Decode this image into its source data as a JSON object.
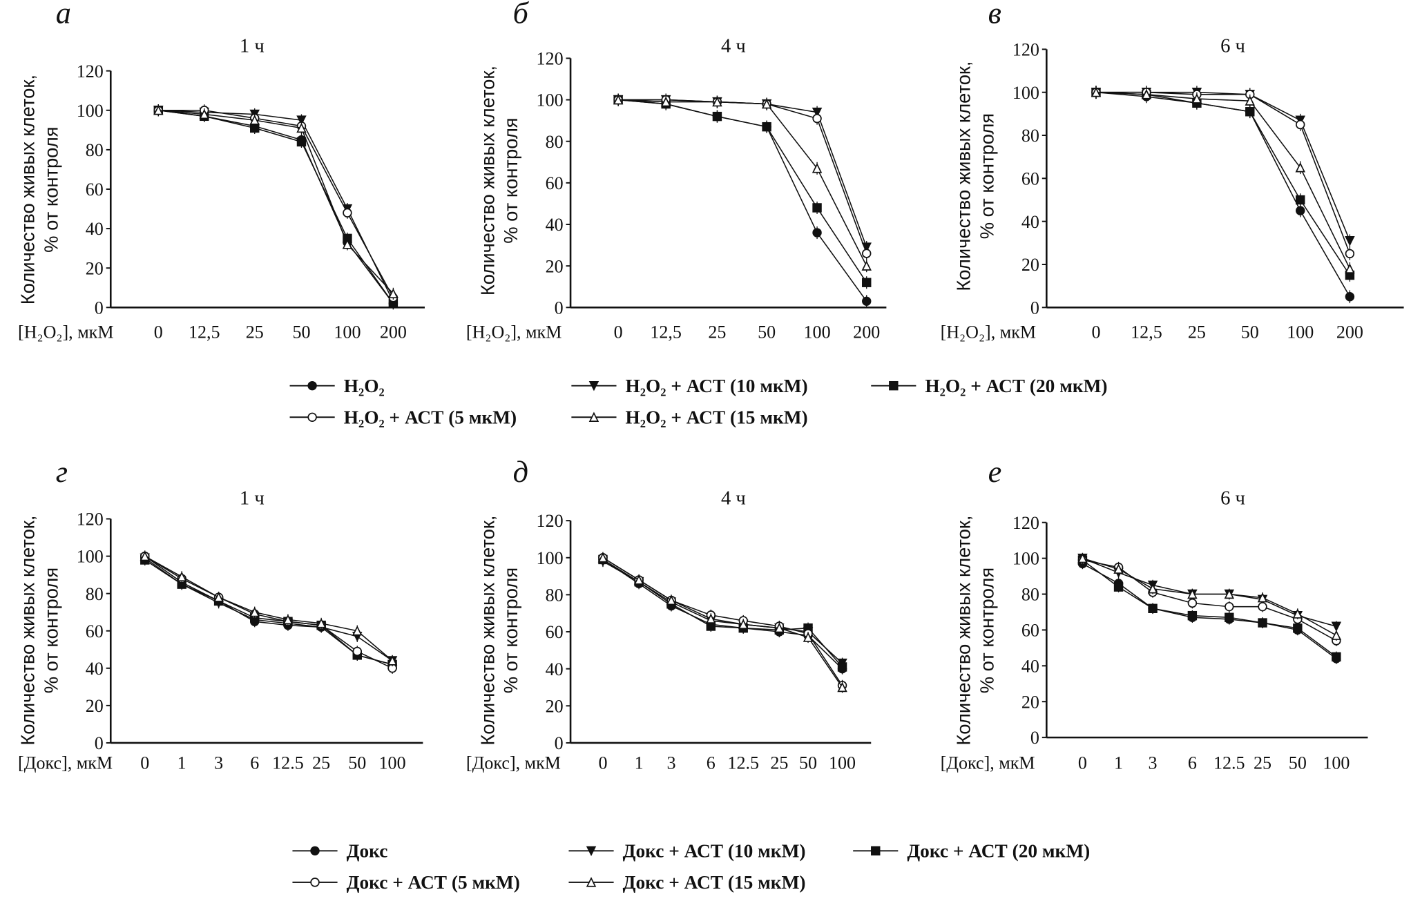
{
  "colors": {
    "line": "#111111",
    "background": "#ffffff"
  },
  "legend_h2o2": [
    "H₂O₂",
    "H₂O₂ + АСТ (10 мкМ)",
    "H₂O₂ + АСТ (20 мкМ)",
    "H₂O₂ + АСТ (5 мкМ)",
    "H₂O₂ + АСТ (15 мкМ)"
  ],
  "legend_doks": [
    "Докс",
    "Докс + АСТ (10 мкМ)",
    "Докс + АСТ (20 мкМ)",
    "Докс + АСТ (5 мкМ)",
    "Докс + АСТ (15 мкМ)"
  ],
  "markers": [
    "filled-circle",
    "filled-triangle-down",
    "filled-square",
    "open-circle",
    "open-triangle-up"
  ],
  "chart_data": [
    {
      "type": "line",
      "letter": "а",
      "title": "1 ч",
      "xlabel": "[H₂O₂], мкМ",
      "ylabel": [
        "Количество живых клеток,",
        "% от контроля"
      ],
      "categories": [
        "0",
        "12,5",
        "25",
        "50",
        "100",
        "200"
      ],
      "ylim": [
        0,
        120
      ],
      "yticks": [
        "0",
        "20",
        "40",
        "60",
        "80",
        "100",
        "120"
      ],
      "grid": false,
      "series": [
        {
          "name": "H₂O₂",
          "values": [
            100,
            97,
            92,
            85,
            33,
            2
          ]
        },
        {
          "name": "H₂O₂ + АСТ (10 мкМ)",
          "values": [
            100,
            99,
            98,
            95,
            50,
            3
          ]
        },
        {
          "name": "H₂O₂ + АСТ (20 мкМ)",
          "values": [
            100,
            97,
            91,
            84,
            35,
            2
          ]
        },
        {
          "name": "H₂O₂ + АСТ (5 мкМ)",
          "values": [
            100,
            100,
            96,
            92,
            48,
            5
          ]
        },
        {
          "name": "H₂O₂ + АСТ (15 мкМ)",
          "values": [
            100,
            98,
            95,
            91,
            32,
            7
          ]
        }
      ]
    },
    {
      "type": "line",
      "letter": "б",
      "title": "4 ч",
      "xlabel": "[H₂O₂], мкМ",
      "ylabel": [
        "Количество живых клеток,",
        "% от контроля"
      ],
      "categories": [
        "0",
        "12,5",
        "25",
        "50",
        "100",
        "200"
      ],
      "ylim": [
        0,
        120
      ],
      "yticks": [
        "0",
        "20",
        "40",
        "60",
        "80",
        "100",
        "120"
      ],
      "grid": false,
      "series": [
        {
          "name": "H₂O₂",
          "values": [
            100,
            98,
            92,
            87,
            36,
            3
          ]
        },
        {
          "name": "H₂O₂ + АСТ (10 мкМ)",
          "values": [
            100,
            100,
            99,
            98,
            94,
            29
          ]
        },
        {
          "name": "H₂O₂ + АСТ (20 мкМ)",
          "values": [
            100,
            98,
            92,
            87,
            48,
            12
          ]
        },
        {
          "name": "H₂O₂ + АСТ (5 мкМ)",
          "values": [
            100,
            100,
            99,
            98,
            91,
            26
          ]
        },
        {
          "name": "H₂O₂ + АСТ (15 мкМ)",
          "values": [
            100,
            99,
            99,
            98,
            67,
            20
          ]
        }
      ]
    },
    {
      "type": "line",
      "letter": "в",
      "title": "6 ч",
      "xlabel": "[H₂O₂], мкМ",
      "ylabel": [
        "Количество живых клеток,",
        "% от контроля"
      ],
      "categories": [
        "0",
        "12,5",
        "25",
        "50",
        "100",
        "200"
      ],
      "ylim": [
        0,
        120
      ],
      "yticks": [
        "0",
        "20",
        "40",
        "60",
        "80",
        "100",
        "120"
      ],
      "grid": false,
      "series": [
        {
          "name": "H₂O₂",
          "values": [
            100,
            98,
            95,
            91,
            45,
            5
          ]
        },
        {
          "name": "H₂O₂ + АСТ (10 мкМ)",
          "values": [
            100,
            100,
            100,
            99,
            87,
            31
          ]
        },
        {
          "name": "H₂O₂ + АСТ (20 мкМ)",
          "values": [
            100,
            99,
            95,
            91,
            50,
            15
          ]
        },
        {
          "name": "H₂O₂ + АСТ (5 мкМ)",
          "values": [
            100,
            100,
            99,
            99,
            85,
            25
          ]
        },
        {
          "name": "H₂O₂ + АСТ (15 мкМ)",
          "values": [
            100,
            99,
            97,
            96,
            65,
            18
          ]
        }
      ]
    },
    {
      "type": "line",
      "letter": "г",
      "title": "1 ч",
      "xlabel": "[Докс], мкМ",
      "ylabel": [
        "Количество живых клеток,",
        "% от контроля"
      ],
      "categories": [
        "0",
        "1",
        "3",
        "6",
        "12.5",
        "25",
        "50",
        "100"
      ],
      "ylim": [
        0,
        120
      ],
      "yticks": [
        "0",
        "20",
        "40",
        "60",
        "80",
        "100",
        "120"
      ],
      "grid": false,
      "series": [
        {
          "name": "Докс",
          "values": [
            100,
            86,
            76,
            65,
            63,
            62,
            47,
            42
          ]
        },
        {
          "name": "Докс + АСТ (10 мкМ)",
          "values": [
            99,
            85,
            75,
            66,
            64,
            62,
            57,
            44
          ]
        },
        {
          "name": "Докс + АСТ (20 мкМ)",
          "values": [
            98,
            85,
            76,
            67,
            65,
            63,
            47,
            42
          ]
        },
        {
          "name": "Докс + АСТ (5 мкМ)",
          "values": [
            100,
            88,
            78,
            69,
            65,
            63,
            49,
            40
          ]
        },
        {
          "name": "Докс + АСТ (15 мкМ)",
          "values": [
            100,
            89,
            78,
            70,
            66,
            64,
            60,
            44
          ]
        }
      ]
    },
    {
      "type": "line",
      "letter": "д",
      "title": "4 ч",
      "xlabel": "[Докс], мкМ",
      "ylabel": [
        "Количество живых клеток,",
        "% от контроля"
      ],
      "categories": [
        "0",
        "1",
        "3",
        "6",
        "12.5",
        "25",
        "50",
        "100"
      ],
      "ylim": [
        0,
        120
      ],
      "yticks": [
        "0",
        "20",
        "40",
        "60",
        "80",
        "100",
        "120"
      ],
      "grid": false,
      "series": [
        {
          "name": "Докс",
          "values": [
            99,
            86,
            74,
            64,
            62,
            60,
            58,
            40
          ]
        },
        {
          "name": "Докс + АСТ (10 мкМ)",
          "values": [
            98,
            87,
            76,
            66,
            64,
            62,
            60,
            43
          ]
        },
        {
          "name": "Докс + АСТ (20 мкМ)",
          "values": [
            99,
            87,
            75,
            63,
            62,
            61,
            62,
            41
          ]
        },
        {
          "name": "Докс + АСТ (5 мкМ)",
          "values": [
            100,
            88,
            77,
            69,
            66,
            63,
            59,
            31
          ]
        },
        {
          "name": "Докс + АСТ (15 мкМ)",
          "values": [
            100,
            88,
            77,
            67,
            64,
            62,
            57,
            30
          ]
        }
      ]
    },
    {
      "type": "line",
      "letter": "е",
      "title": "6 ч",
      "xlabel": "[Докс], мкМ",
      "ylabel": [
        "Количество живых клеток,",
        "% от контроля"
      ],
      "categories": [
        "0",
        "1",
        "3",
        "6",
        "12.5",
        "25",
        "50",
        "100"
      ],
      "ylim": [
        0,
        120
      ],
      "yticks": [
        "0",
        "20",
        "40",
        "60",
        "80",
        "100",
        "120"
      ],
      "grid": false,
      "series": [
        {
          "name": "Докс",
          "values": [
            97,
            86,
            72,
            67,
            66,
            64,
            60,
            44
          ]
        },
        {
          "name": "Докс + АСТ (10 мкМ)",
          "values": [
            100,
            92,
            85,
            80,
            80,
            77,
            68,
            62
          ]
        },
        {
          "name": "Докс + АСТ (20 мкМ)",
          "values": [
            99,
            84,
            72,
            68,
            67,
            64,
            61,
            45
          ]
        },
        {
          "name": "Докс + АСТ (5 мкМ)",
          "values": [
            99,
            95,
            81,
            75,
            73,
            73,
            66,
            54
          ]
        },
        {
          "name": "Докс + АСТ (15 мкМ)",
          "values": [
            100,
            94,
            83,
            80,
            80,
            78,
            69,
            57
          ]
        }
      ]
    }
  ]
}
